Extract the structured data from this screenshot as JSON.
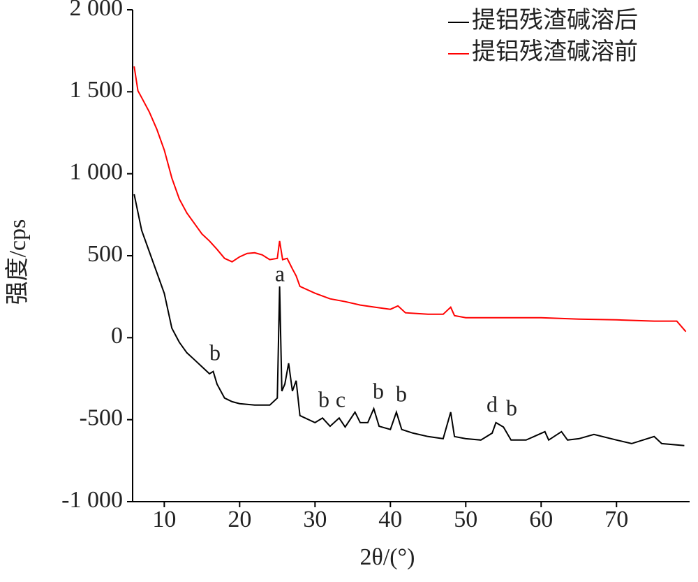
{
  "chart_data": {
    "type": "line",
    "xlabel": "2θ/(°)",
    "ylabel": "强度/cps",
    "xlim": [
      5.8,
      79.7
    ],
    "ylim": [
      -1000,
      2000
    ],
    "xticks": [
      10,
      20,
      30,
      40,
      50,
      60,
      70
    ],
    "yticks": [
      {
        "value": -1000,
        "label": "-1 000"
      },
      -500,
      0,
      500,
      {
        "value": 1000,
        "label": "1 000"
      },
      {
        "value": 1500,
        "label": "1 500"
      },
      {
        "value": 2000,
        "label": "2 000"
      }
    ],
    "legend": "upper right",
    "annotations": [
      "b",
      "a",
      "b",
      "c",
      "b",
      "b",
      "d",
      "b"
    ],
    "series": [
      {
        "name": "提铝残渣碱溶后",
        "color": "#000000",
        "x": [
          6,
          7,
          8,
          9,
          10,
          11,
          12,
          13,
          14,
          15,
          16,
          16.5,
          17,
          18,
          19,
          20,
          22,
          24,
          25,
          25.3,
          25.6,
          26,
          26.5,
          27,
          27.5,
          28,
          30,
          31,
          32,
          33.2,
          34,
          35.3,
          36,
          37,
          37.8,
          38.5,
          40,
          40.8,
          41.5,
          43,
          45,
          47,
          48,
          48.5,
          50,
          52,
          53.5,
          54,
          55,
          56,
          58,
          60.5,
          61,
          62.7,
          63.5,
          65,
          67,
          70,
          72,
          75,
          76,
          79
        ],
        "values": [
          875,
          654,
          526,
          398,
          270,
          58,
          -28,
          -92,
          -134,
          -177,
          -220,
          -206,
          -283,
          -368,
          -390,
          -402,
          -411,
          -411,
          -368,
          313,
          -326,
          -283,
          -156,
          -326,
          -262,
          -475,
          -518,
          -490,
          -540,
          -490,
          -545,
          -454,
          -518,
          -518,
          -433,
          -540,
          -560,
          -454,
          -560,
          -582,
          -603,
          -616,
          -454,
          -603,
          -616,
          -624,
          -582,
          -518,
          -545,
          -624,
          -624,
          -573,
          -624,
          -573,
          -624,
          -616,
          -590,
          -624,
          -646,
          -603,
          -646,
          -658
        ]
      },
      {
        "name": "提铝残渣碱溶前",
        "color": "#ff0000",
        "x": [
          6,
          6.5,
          7,
          8,
          9,
          10,
          11,
          12,
          13,
          14,
          15,
          16,
          17,
          18,
          19,
          20,
          21,
          22,
          23,
          24,
          25,
          25.3,
          25.7,
          26.3,
          27,
          27.5,
          28,
          30,
          32,
          34,
          36,
          38,
          40,
          41,
          42,
          45,
          47,
          48,
          48.5,
          50,
          55,
          60,
          65,
          70,
          75,
          78,
          79.2
        ],
        "values": [
          1655,
          1506,
          1464,
          1378,
          1272,
          1144,
          974,
          846,
          761,
          697,
          633,
          590,
          539,
          484,
          463,
          493,
          514,
          518,
          505,
          476,
          484,
          590,
          476,
          484,
          420,
          377,
          313,
          271,
          237,
          220,
          199,
          186,
          173,
          194,
          152,
          143,
          143,
          186,
          135,
          122,
          122,
          122,
          113,
          109,
          101,
          101,
          37
        ]
      }
    ]
  }
}
